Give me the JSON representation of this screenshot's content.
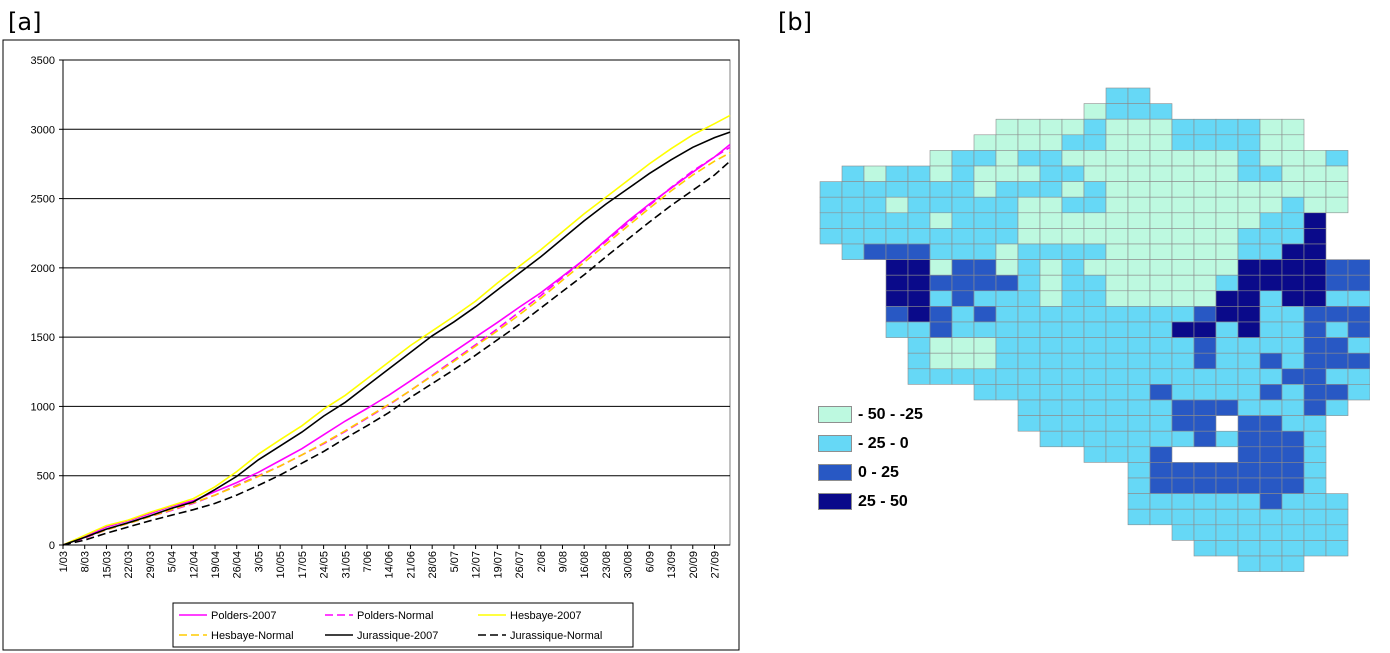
{
  "panel_labels": {
    "a": "[a]",
    "b": "[b]"
  },
  "chart_data": [
    {
      "type": "line",
      "title": "",
      "xlabel": "",
      "ylabel": "",
      "ylim": [
        0,
        3500
      ],
      "yticks": [
        0,
        500,
        1000,
        1500,
        2000,
        2500,
        3000,
        3500
      ],
      "grid": "horizontal",
      "legend_placement": "bottom",
      "x_categories": [
        "1/03",
        "8/03",
        "15/03",
        "22/03",
        "29/03",
        "5/04",
        "12/04",
        "19/04",
        "26/04",
        "3/05",
        "10/05",
        "17/05",
        "24/05",
        "31/05",
        "7/06",
        "14/06",
        "21/06",
        "28/06",
        "5/07",
        "12/07",
        "19/07",
        "26/07",
        "2/08",
        "9/08",
        "16/08",
        "23/08",
        "30/08",
        "6/09",
        "13/09",
        "20/09",
        "27/09"
      ],
      "x_end_day": 215,
      "series": [
        {
          "name": "Polders-2007",
          "color": "#ff00ff",
          "dash": "solid",
          "x": [
            0,
            7,
            14,
            21,
            28,
            35,
            42,
            49,
            56,
            63,
            70,
            77,
            84,
            91,
            98,
            105,
            112,
            119,
            126,
            133,
            140,
            147,
            154,
            161,
            168,
            175,
            182,
            189,
            196,
            203,
            210,
            215
          ],
          "values": [
            0,
            60,
            130,
            175,
            225,
            280,
            320,
            385,
            450,
            525,
            610,
            695,
            795,
            895,
            985,
            1080,
            1185,
            1290,
            1395,
            1500,
            1605,
            1715,
            1820,
            1940,
            2060,
            2200,
            2335,
            2460,
            2575,
            2690,
            2800,
            2890
          ]
        },
        {
          "name": "Polders-Normal",
          "color": "#ff00ff",
          "dash": "dashed",
          "x": [
            0,
            7,
            14,
            21,
            28,
            35,
            42,
            49,
            56,
            63,
            70,
            77,
            84,
            91,
            98,
            105,
            112,
            119,
            126,
            133,
            140,
            147,
            154,
            161,
            168,
            175,
            182,
            189,
            196,
            203,
            210,
            215
          ],
          "values": [
            0,
            50,
            110,
            155,
            205,
            250,
            300,
            360,
            430,
            500,
            570,
            650,
            730,
            820,
            915,
            1010,
            1115,
            1225,
            1335,
            1445,
            1560,
            1680,
            1800,
            1930,
            2060,
            2190,
            2320,
            2450,
            2580,
            2700,
            2800,
            2870
          ]
        },
        {
          "name": "Hesbaye-2007",
          "color": "#ffff00",
          "dash": "solid",
          "x": [
            0,
            7,
            14,
            21,
            28,
            35,
            42,
            49,
            56,
            63,
            70,
            77,
            84,
            91,
            98,
            105,
            112,
            119,
            126,
            133,
            140,
            147,
            154,
            161,
            168,
            175,
            182,
            189,
            196,
            203,
            210,
            215
          ],
          "values": [
            0,
            70,
            140,
            180,
            235,
            285,
            335,
            420,
            530,
            655,
            760,
            860,
            980,
            1080,
            1200,
            1320,
            1440,
            1545,
            1650,
            1760,
            1890,
            2010,
            2130,
            2260,
            2390,
            2510,
            2630,
            2750,
            2860,
            2960,
            3040,
            3100
          ]
        },
        {
          "name": "Hesbaye-Normal",
          "color": "#ffcc00",
          "dash": "dashed",
          "x": [
            0,
            7,
            14,
            21,
            28,
            35,
            42,
            49,
            56,
            63,
            70,
            77,
            84,
            91,
            98,
            105,
            112,
            119,
            126,
            133,
            140,
            147,
            154,
            161,
            168,
            175,
            182,
            189,
            196,
            203,
            210,
            215
          ],
          "values": [
            0,
            55,
            110,
            155,
            205,
            255,
            305,
            360,
            425,
            495,
            570,
            650,
            735,
            825,
            920,
            1015,
            1115,
            1220,
            1325,
            1435,
            1545,
            1660,
            1780,
            1910,
            2040,
            2170,
            2300,
            2430,
            2555,
            2670,
            2770,
            2830
          ]
        },
        {
          "name": "Jurassique-2007",
          "color": "#000000",
          "dash": "solid",
          "x": [
            0,
            7,
            14,
            21,
            28,
            35,
            42,
            49,
            56,
            63,
            70,
            77,
            84,
            91,
            98,
            105,
            112,
            119,
            126,
            133,
            140,
            147,
            154,
            161,
            168,
            175,
            182,
            189,
            196,
            203,
            210,
            215
          ],
          "values": [
            0,
            55,
            115,
            160,
            210,
            265,
            310,
            400,
            495,
            615,
            715,
            815,
            930,
            1030,
            1150,
            1270,
            1390,
            1510,
            1610,
            1720,
            1840,
            1960,
            2080,
            2210,
            2340,
            2460,
            2570,
            2680,
            2780,
            2870,
            2940,
            2980
          ]
        },
        {
          "name": "Jurassique-Normal",
          "color": "#000000",
          "dash": "dashed",
          "x": [
            0,
            7,
            14,
            21,
            28,
            35,
            42,
            49,
            56,
            63,
            70,
            77,
            84,
            91,
            98,
            105,
            112,
            119,
            126,
            133,
            140,
            147,
            154,
            161,
            168,
            175,
            182,
            189,
            196,
            203,
            210,
            215
          ],
          "values": [
            0,
            35,
            85,
            130,
            175,
            215,
            255,
            300,
            360,
            430,
            505,
            590,
            675,
            770,
            860,
            955,
            1065,
            1165,
            1265,
            1370,
            1480,
            1590,
            1710,
            1830,
            1950,
            2080,
            2205,
            2330,
            2450,
            2560,
            2670,
            2770
          ]
        }
      ]
    },
    {
      "type": "heatmap",
      "title": "",
      "cell_colors": {
        "0": "#ffffff",
        "1": "#bdf9e0",
        "2": "#66d8f6",
        "3": "#2858c4",
        "4": "#0a0a8a"
      },
      "legend": [
        {
          "label": "- 50 - -25",
          "color": "#bdf9e0"
        },
        {
          "label": "- 25 - 0",
          "color": "#66d8f6"
        },
        {
          "label": "0 - 25",
          "color": "#2858c4"
        },
        {
          "label": "25 - 50",
          "color": "#0a0a8a"
        }
      ],
      "grid": [
        "00000000000000220000000000",
        "00000000000001222000000000",
        "00000000011112111222211000",
        "00000000111122111222211000",
        "00000012212211111111211120",
        "00212212111221111111221110",
        "02222222122212111111111110",
        "02221222221122111111112110",
        "02222212221111111111122400",
        "02222222221111111111222400",
        "00233322212222111111224400",
        "00004413312121111111444433",
        "00004433332122111112444433",
        "00004423222122111114424422",
        "00003432322222222234422333",
        "00002232222222222442422323",
        "00000211122222222232222332",
        "00000211122222222232232333",
        "00000222222222222222223322",
        "00000000222222223222232332",
        "00000000002222222333222320",
        "00000000002222222330332200",
        "00000000000222222232333200",
        "00000000000002223000333200",
        "00000000000000023333333200",
        "00000000000000023333333200",
        "00000000000000022222232220",
        "00000000000000022222222220",
        "00000000000000000222222220",
        "00000000000000000022222220",
        "00000000000000000000222000"
      ]
    }
  ]
}
